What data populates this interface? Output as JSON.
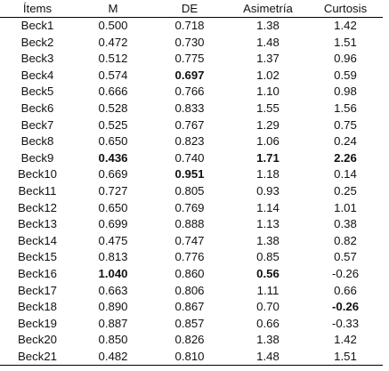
{
  "table": {
    "headers": [
      "Ítems",
      "M",
      "DE",
      "Asimetría",
      "Curtosis"
    ],
    "rows": [
      [
        "Beck1",
        "0.500",
        "0.718",
        "1.38",
        "1.42"
      ],
      [
        "Beck2",
        "0.472",
        "0.730",
        "1.48",
        "1.51"
      ],
      [
        "Beck3",
        "0.512",
        "0.775",
        "1.37",
        "0.96"
      ],
      [
        "Beck4",
        "0.574",
        "0.697",
        "1.02",
        "0.59"
      ],
      [
        "Beck5",
        "0.666",
        "0.766",
        "1.10",
        "0.98"
      ],
      [
        "Beck6",
        "0.528",
        "0.833",
        "1.55",
        "1.56"
      ],
      [
        "Beck7",
        "0.525",
        "0.767",
        "1.29",
        "0.75"
      ],
      [
        "Beck8",
        "0.650",
        "0.823",
        "1.06",
        "0.24"
      ],
      [
        "Beck9",
        "0.436",
        "0.740",
        "1.71",
        "2.26"
      ],
      [
        "Beck10",
        "0.669",
        "0.951",
        "1.18",
        "0.14"
      ],
      [
        "Beck11",
        "0.727",
        "0.805",
        "0.93",
        "0.25"
      ],
      [
        "Beck12",
        "0.650",
        "0.769",
        "1.14",
        "1.01"
      ],
      [
        "Beck13",
        "0.699",
        "0.888",
        "1.13",
        "0.38"
      ],
      [
        "Beck14",
        "0.475",
        "0.747",
        "1.38",
        "0.82"
      ],
      [
        "Beck15",
        "0.813",
        "0.776",
        "0.85",
        "0.57"
      ],
      [
        "Beck16",
        "1.040",
        "0.860",
        "0.56",
        "-0.26"
      ],
      [
        "Beck17",
        "0.663",
        "0.806",
        "1.11",
        "0.66"
      ],
      [
        "Beck18",
        "0.890",
        "0.867",
        "0.70",
        "-0.26"
      ],
      [
        "Beck19",
        "0.887",
        "0.857",
        "0.66",
        "-0.33"
      ],
      [
        "Beck20",
        "0.850",
        "0.826",
        "1.38",
        "1.42"
      ],
      [
        "Beck21",
        "0.482",
        "0.810",
        "1.48",
        "1.51"
      ]
    ],
    "bold_cells": [
      [
        3,
        2
      ],
      [
        8,
        1
      ],
      [
        8,
        3
      ],
      [
        8,
        4
      ],
      [
        9,
        2
      ],
      [
        15,
        1
      ],
      [
        15,
        3
      ],
      [
        17,
        4
      ]
    ]
  }
}
